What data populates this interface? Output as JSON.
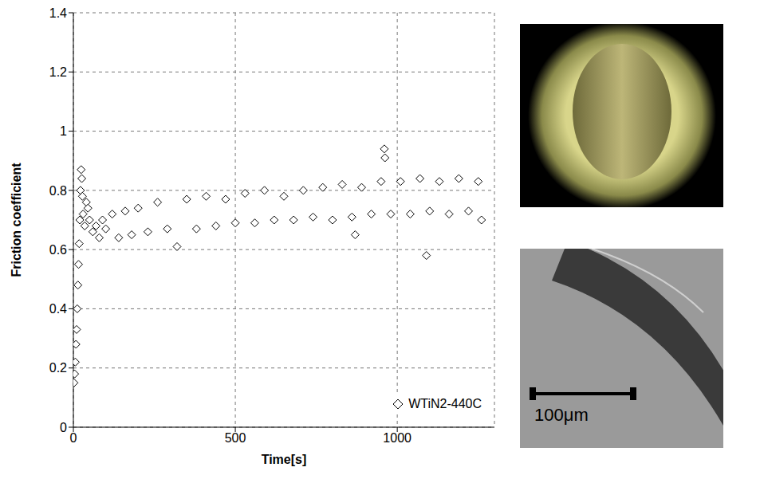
{
  "chart_data": {
    "type": "scatter",
    "x_label": "Time[s]",
    "y_label": "Friction coefficient",
    "x": [
      2,
      4,
      6,
      8,
      10,
      12,
      14,
      16,
      18,
      20,
      22,
      24,
      26,
      28,
      30,
      35,
      40,
      45,
      50,
      60,
      70,
      80,
      90,
      100,
      120,
      140,
      160,
      180,
      200,
      230,
      260,
      290,
      320,
      350,
      380,
      410,
      440,
      470,
      500,
      530,
      560,
      590,
      620,
      650,
      680,
      710,
      740,
      770,
      800,
      830,
      860,
      870,
      890,
      920,
      950,
      960,
      962,
      980,
      1010,
      1040,
      1070,
      1090,
      1100,
      1130,
      1160,
      1190,
      1220,
      1250,
      1260
    ],
    "series": [
      {
        "name": "WTiN2-440C",
        "color": "#000000",
        "marker": "diamond",
        "values": [
          0.15,
          0.18,
          0.22,
          0.28,
          0.33,
          0.4,
          0.48,
          0.55,
          0.62,
          0.7,
          0.8,
          0.87,
          0.84,
          0.78,
          0.72,
          0.68,
          0.76,
          0.74,
          0.7,
          0.66,
          0.68,
          0.64,
          0.7,
          0.67,
          0.72,
          0.64,
          0.73,
          0.65,
          0.74,
          0.66,
          0.76,
          0.67,
          0.61,
          0.77,
          0.67,
          0.78,
          0.68,
          0.77,
          0.69,
          0.79,
          0.69,
          0.8,
          0.7,
          0.78,
          0.7,
          0.8,
          0.71,
          0.81,
          0.7,
          0.82,
          0.71,
          0.65,
          0.81,
          0.72,
          0.83,
          0.94,
          0.91,
          0.72,
          0.83,
          0.72,
          0.84,
          0.58,
          0.73,
          0.83,
          0.72,
          0.84,
          0.73,
          0.83,
          0.7
        ]
      }
    ],
    "xlim": [
      0,
      1300
    ],
    "xticks": [
      0,
      500,
      1000
    ],
    "ylim": [
      0,
      1.4
    ],
    "yticks": [
      0,
      0.2,
      0.4,
      0.6,
      0.8,
      1,
      1.2,
      1.4
    ],
    "grid": true,
    "legend": "lower right"
  },
  "scale_bar": {
    "label": "100μm"
  }
}
